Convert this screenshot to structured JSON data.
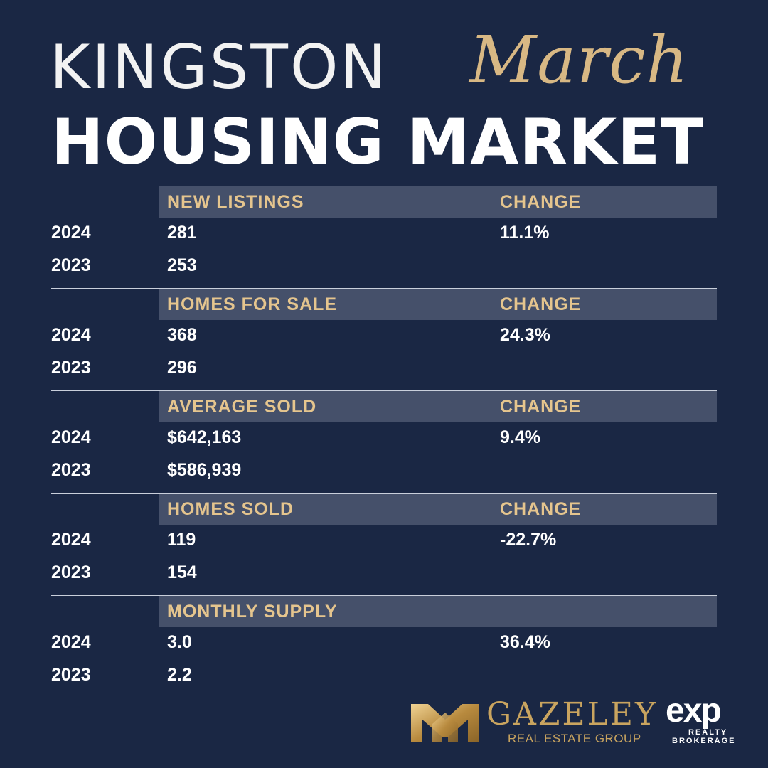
{
  "header": {
    "city": "KINGSTON",
    "month": "March",
    "title": "HOUSING MARKET"
  },
  "sections": [
    {
      "label": "NEW LISTINGS",
      "change_label": "CHANGE",
      "rows": [
        {
          "year": "2024",
          "value": "281",
          "change": "11.1%"
        },
        {
          "year": "2023",
          "value": "253",
          "change": ""
        }
      ]
    },
    {
      "label": "HOMES FOR SALE",
      "change_label": "CHANGE",
      "rows": [
        {
          "year": "2024",
          "value": "368",
          "change": "24.3%"
        },
        {
          "year": "2023",
          "value": "296",
          "change": ""
        }
      ]
    },
    {
      "label": "AVERAGE SOLD",
      "change_label": "CHANGE",
      "rows": [
        {
          "year": "2024",
          "value": "$642,163",
          "change": "9.4%"
        },
        {
          "year": "2023",
          "value": "$586,939",
          "change": ""
        }
      ]
    },
    {
      "label": "HOMES SOLD",
      "change_label": "CHANGE",
      "rows": [
        {
          "year": "2024",
          "value": "119",
          "change": "-22.7%"
        },
        {
          "year": "2023",
          "value": "154",
          "change": ""
        }
      ]
    },
    {
      "label": "MONTHLY SUPPLY",
      "change_label": "",
      "rows": [
        {
          "year": "2024",
          "value": "3.0",
          "change": "36.4%"
        },
        {
          "year": "2023",
          "value": "2.2",
          "change": ""
        }
      ]
    }
  ],
  "footer": {
    "brand_name": "GAZELEY",
    "brand_sub": "REAL ESTATE GROUP",
    "partner_word": "exp",
    "partner_sub1": "REALTY",
    "partner_sub2": "BROKERAGE"
  },
  "colors": {
    "background": "#1a2744",
    "header_band": "#45506a",
    "gold": "#e5c58e",
    "script_gold": "#d8b884"
  }
}
